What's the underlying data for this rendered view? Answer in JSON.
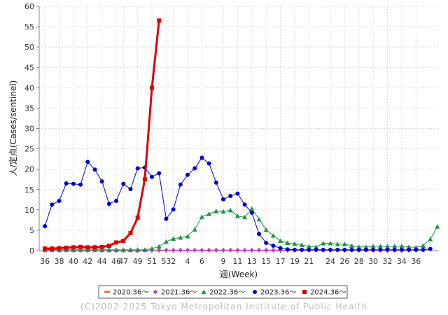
{
  "chart_data": {
    "type": "line",
    "xlabel": "週(Week)",
    "ylabel": "人/定点(Cases/sentinel)",
    "ylim": [
      0,
      60
    ],
    "yticks": [
      0,
      5,
      10,
      15,
      20,
      25,
      30,
      35,
      40,
      45,
      50,
      55,
      60
    ],
    "xticks": [
      "36",
      "38",
      "40",
      "42",
      "44",
      "46",
      "47",
      "49",
      "51",
      "53",
      "2",
      "4",
      "6",
      "9",
      "11",
      "13",
      "15",
      "17",
      "19",
      "21",
      "24",
      "26",
      "28",
      "30",
      "32",
      "34",
      "36"
    ],
    "grid": true,
    "legend_position": "bottom",
    "series": [
      {
        "name": "2020.36～",
        "color": "#f07820",
        "marker": "dash",
        "values": []
      },
      {
        "name": "2021.36～",
        "color": "#cc33cc",
        "marker": "diamond",
        "values": [
          0.1,
          0.1,
          0.1,
          0.1,
          0.1,
          0.1,
          0.1,
          0.1,
          0.1,
          0.1,
          0.1,
          0.1,
          0.1,
          0.1,
          0.1,
          0.1,
          0.1,
          0.1,
          0.1,
          0.1,
          0.1,
          0.1,
          0.1,
          0.1,
          0.1,
          0.1,
          0.1,
          0.1,
          0.1,
          0.1,
          0.1,
          0.1,
          0.1,
          0.1,
          0.1,
          0.1,
          0.1,
          0.1,
          0.1,
          0.1,
          0.1,
          0.1,
          0.1,
          0.1,
          0.1,
          0.1,
          0.1,
          0.1,
          0.1,
          0.1,
          0.1,
          0.1
        ]
      },
      {
        "name": "2022.36～",
        "color": "#1a9641",
        "marker": "triangle",
        "values": [
          0.2,
          0.2,
          0.2,
          0.2,
          0.2,
          0.2,
          0.2,
          0.2,
          0.2,
          0.2,
          0.2,
          0.2,
          0.2,
          0.2,
          0.2,
          0.5,
          1.0,
          2.2,
          2.9,
          3.2,
          3.5,
          5.2,
          8.3,
          9.0,
          9.7,
          9.6,
          9.9,
          8.5,
          8.2,
          10.3,
          7.7,
          5.1,
          3.7,
          2.4,
          1.9,
          1.7,
          1.4,
          1.0,
          0.9,
          1.8,
          1.8,
          1.6,
          1.6,
          1.2,
          0.9,
          0.9,
          1.1,
          1.1,
          1.0,
          1.1,
          1.1,
          0.9,
          0.8,
          1.2,
          2.8,
          5.9
        ]
      },
      {
        "name": "2023.36～",
        "color": "#0000cc",
        "marker": "circle",
        "values": [
          6.0,
          11.3,
          12.2,
          16.5,
          16.4,
          16.2,
          21.8,
          19.9,
          17.0,
          11.5,
          12.2,
          16.4,
          15.1,
          20.2,
          20.4,
          18.1,
          19.0,
          7.8,
          10.1,
          16.2,
          18.6,
          20.2,
          22.8,
          21.4,
          16.7,
          12.6,
          13.4,
          14.0,
          11.3,
          9.3,
          4.1,
          1.9,
          1.2,
          0.6,
          0.3,
          0.2,
          0.2,
          0.2,
          0.2,
          0.2,
          0.2,
          0.2,
          0.2,
          0.2,
          0.2,
          0.2,
          0.2,
          0.2,
          0.2,
          0.2,
          0.2,
          0.2,
          0.2,
          0.2,
          0.4
        ]
      },
      {
        "name": "2024.36～",
        "color": "#dd0000",
        "marker": "square",
        "values": [
          0.5,
          0.5,
          0.6,
          0.7,
          0.8,
          0.9,
          0.8,
          0.8,
          0.9,
          1.2,
          2.0,
          2.4,
          4.3,
          8.1,
          17.5,
          40.0,
          56.5
        ]
      }
    ]
  },
  "copyright": "(C)2002-2025 Tokyo Metropolitan Institute of Public Health"
}
